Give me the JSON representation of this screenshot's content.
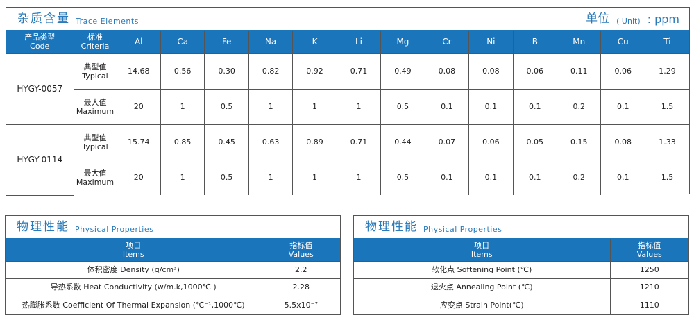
{
  "trace": {
    "title_cn": "杂质含量",
    "title_en": "Trace Elements",
    "unit_cn": "单位",
    "unit_en": "( Unit)",
    "unit_val": ": ppm",
    "header": {
      "code_cn": "产品类型",
      "code_en": "Code",
      "criteria_cn": "标准",
      "criteria_en": "Criteria",
      "elements": [
        "Al",
        "Ca",
        "Fe",
        "Na",
        "K",
        "Li",
        "Mg",
        "Cr",
        "Ni",
        "B",
        "Mn",
        "Cu",
        "Ti"
      ]
    },
    "products": [
      {
        "code": "HYGY-0057",
        "rows": [
          {
            "cn": "典型值",
            "en": "Typical",
            "values": [
              "14.68",
              "0.56",
              "0.30",
              "0.82",
              "0.92",
              "0.71",
              "0.49",
              "0.08",
              "0.08",
              "0.06",
              "0.11",
              "0.06",
              "1.29"
            ]
          },
          {
            "cn": "最大值",
            "en": "Maximum",
            "values": [
              "20",
              "1",
              "0.5",
              "1",
              "1",
              "1",
              "0.5",
              "0.1",
              "0.1",
              "0.1",
              "0.2",
              "0.1",
              "1.5"
            ]
          }
        ]
      },
      {
        "code": "HYGY-0114",
        "rows": [
          {
            "cn": "典型值",
            "en": "Typical",
            "values": [
              "15.74",
              "0.85",
              "0.45",
              "0.63",
              "0.89",
              "0.71",
              "0.44",
              "0.07",
              "0.06",
              "0.05",
              "0.15",
              "0.08",
              "1.33"
            ]
          },
          {
            "cn": "最大值",
            "en": "Maximum",
            "values": [
              "20",
              "1",
              "0.5",
              "1",
              "1",
              "1",
              "0.5",
              "0.1",
              "0.1",
              "0.1",
              "0.2",
              "0.1",
              "1.5"
            ]
          }
        ]
      }
    ]
  },
  "phys_left": {
    "title_cn": "物理性能",
    "title_en": "Physical  Properties",
    "items_cn": "项目",
    "items_en": "Items",
    "values_cn": "指标值",
    "values_en": "Values",
    "rows": [
      {
        "item": "体积密度 Density (g/cm³)",
        "value": "2.2"
      },
      {
        "item": "导热系数 Heat Conductivity (w/m.k,1000℃ )",
        "value": "2.28"
      },
      {
        "item": "热膨胀系数 Coefficient Of Thermal Expansion (℃⁻¹,1000℃)",
        "value": "5.5x10⁻⁷"
      }
    ]
  },
  "phys_right": {
    "title_cn": "物理性能",
    "title_en": "Physical  Properties",
    "items_cn": "项目",
    "items_en": "Items",
    "values_cn": "指标值",
    "values_en": "Values",
    "rows": [
      {
        "item": "软化点 Softening Point (℃)",
        "value": "1250"
      },
      {
        "item": "退火点 Annealing Point (℃)",
        "value": "1210"
      },
      {
        "item": "应变点 Strain Point(℃)",
        "value": "1110"
      }
    ]
  }
}
